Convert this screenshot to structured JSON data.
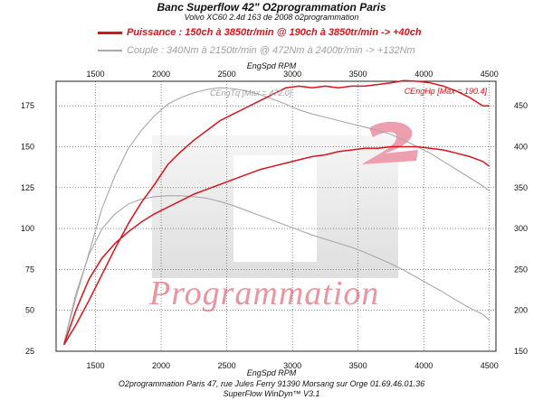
{
  "header": {
    "title": "Banc Superflow 42\" O2programmation Paris",
    "subtitle": "Volvo XC60 2.4d 163 de 2008 o2programmation"
  },
  "legend": {
    "power": "Puissance : 150ch à 3850tr/min @ 190ch à 3850tr/min  -> +40ch",
    "torque": "Couple :  340Nm à 2150tr/min @ 472Nm à 2400tr/min -> +132Nm"
  },
  "footer": {
    "line1": "O2programmation Paris 47, rue Jules Ferry 91390 Morsang sur Orge 01.69.46.01.36",
    "line2": "SuperFlow WinDyn™ V3.1"
  },
  "watermark": {
    "logo_text": "Programmation"
  },
  "colors": {
    "power": "#d8141c",
    "torque": "#a8a8a8",
    "grid": "#444444"
  },
  "chart_data": {
    "type": "line",
    "title": "Banc Superflow 42\" O2programmation Paris",
    "xlabel": "EngSpd RPM",
    "ylabel_left": "",
    "ylabel_right": "",
    "xlim": [
      1200,
      4550
    ],
    "ylim_left": [
      25,
      190
    ],
    "ylim_right": [
      150,
      480
    ],
    "x_ticks": [
      1500,
      2000,
      2500,
      3000,
      3500,
      4000,
      4500
    ],
    "y_ticks_left": [
      25,
      50,
      75,
      100,
      125,
      150,
      175
    ],
    "y_ticks_right": [
      150,
      200,
      250,
      300,
      350,
      400,
      450
    ],
    "grid": true,
    "annotations": {
      "torque_max": "CEngTq [Max = 472.0]",
      "power_max": "CEngHp [Max = 190.4]"
    },
    "series": [
      {
        "name": "CEngHp",
        "axis": "left",
        "color": "#d8141c",
        "x": [
          1260,
          1350,
          1450,
          1550,
          1650,
          1750,
          1850,
          1950,
          2050,
          2150,
          2250,
          2350,
          2450,
          2550,
          2650,
          2750,
          2850,
          2950,
          3050,
          3150,
          3250,
          3350,
          3450,
          3550,
          3650,
          3750,
          3850,
          3950,
          4050,
          4150,
          4250,
          4350,
          4450,
          4500
        ],
        "y": [
          29,
          41,
          56,
          72,
          88,
          103,
          116,
          127,
          139,
          147,
          154,
          160,
          166,
          170,
          174,
          178,
          182,
          186,
          187,
          186,
          187,
          186,
          187,
          187,
          188,
          189,
          190.4,
          190,
          189,
          187,
          184,
          180,
          175,
          175
        ]
      },
      {
        "name": "CEngHp",
        "axis": "left",
        "color": "#d8141c",
        "x": [
          1260,
          1350,
          1450,
          1550,
          1650,
          1750,
          1850,
          1950,
          2050,
          2150,
          2250,
          2350,
          2450,
          2550,
          2650,
          2750,
          2850,
          2950,
          3050,
          3150,
          3250,
          3350,
          3450,
          3550,
          3650,
          3750,
          3850,
          3950,
          4050,
          4150,
          4250,
          4350,
          4450,
          4500
        ],
        "y": [
          29,
          50,
          69,
          82,
          91,
          98,
          104,
          109,
          113,
          117,
          121,
          124,
          127,
          130,
          133,
          136,
          138,
          140,
          142,
          144,
          145,
          147,
          148,
          149,
          149,
          150,
          150,
          150,
          149,
          148,
          146,
          144,
          141,
          138
        ]
      },
      {
        "name": "CEngTq",
        "axis": "right",
        "color": "#a8a8a8",
        "x": [
          1260,
          1350,
          1450,
          1550,
          1650,
          1750,
          1850,
          1950,
          2050,
          2150,
          2250,
          2350,
          2450,
          2550,
          2650,
          2750,
          2850,
          2950,
          3050,
          3150,
          3250,
          3350,
          3450,
          3550,
          3650,
          3750,
          3850,
          3950,
          4050,
          4150,
          4250,
          4350,
          4450,
          4500
        ],
        "y": [
          160,
          215,
          270,
          325,
          365,
          398,
          420,
          438,
          452,
          460,
          466,
          470,
          472,
          471,
          468,
          464,
          458,
          452,
          445,
          440,
          436,
          432,
          428,
          424,
          420,
          415,
          408,
          400,
          392,
          382,
          372,
          362,
          352,
          346
        ]
      },
      {
        "name": "CEngTq",
        "axis": "right",
        "color": "#a8a8a8",
        "x": [
          1260,
          1350,
          1450,
          1550,
          1650,
          1750,
          1850,
          1950,
          2050,
          2150,
          2250,
          2350,
          2450,
          2550,
          2650,
          2750,
          2850,
          2950,
          3050,
          3150,
          3250,
          3350,
          3450,
          3550,
          3650,
          3750,
          3850,
          3950,
          4050,
          4150,
          4250,
          4350,
          4450,
          4500
        ],
        "y": [
          160,
          220,
          268,
          300,
          318,
          330,
          336,
          339,
          340,
          340,
          339,
          337,
          333,
          328,
          322,
          316,
          310,
          304,
          298,
          292,
          287,
          282,
          277,
          271,
          264,
          257,
          249,
          240,
          231,
          222,
          212,
          203,
          195,
          188
        ]
      }
    ]
  }
}
